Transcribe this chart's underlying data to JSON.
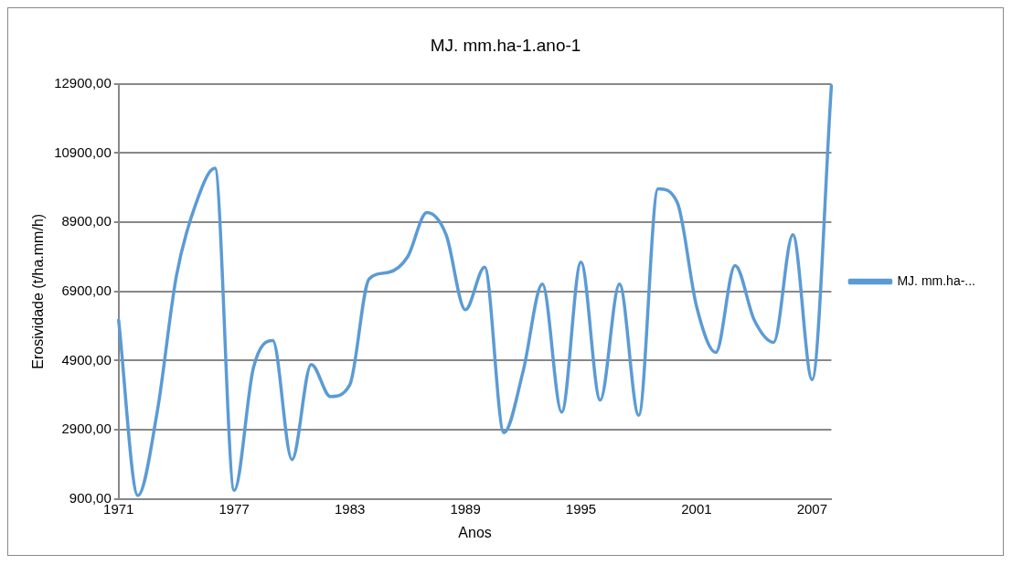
{
  "chart_data": {
    "type": "line",
    "title": "MJ. mm.ha-1.ano-1",
    "xlabel": "Anos",
    "ylabel": "Erosividade (t/ha.mm/h)",
    "categories": [
      "1971",
      null,
      null,
      null,
      null,
      null,
      "1977",
      null,
      null,
      null,
      null,
      null,
      "1983",
      null,
      null,
      null,
      null,
      null,
      "1989",
      null,
      null,
      null,
      null,
      null,
      "1995",
      null,
      null,
      null,
      null,
      null,
      "2001",
      null,
      null,
      null,
      null,
      null,
      "2007",
      null
    ],
    "series": [
      {
        "name": "MJ. mm.ha-...",
        "color": "#5b9bd5",
        "values": [
          6070,
          1000,
          3410,
          7350,
          9420,
          10460,
          1150,
          4700,
          5480,
          2040,
          4790,
          3860,
          4200,
          7260,
          7450,
          7900,
          9180,
          8540,
          6370,
          7600,
          2820,
          4600,
          7110,
          3410,
          7750,
          3760,
          7110,
          3320,
          9870,
          9470,
          6470,
          5140,
          7650,
          6070,
          5430,
          8540,
          4350,
          12850
        ]
      }
    ],
    "ylim": [
      900,
      12900
    ],
    "yticks": [
      {
        "value": 900,
        "label": "900,00"
      },
      {
        "value": 2900,
        "label": "2900,00"
      },
      {
        "value": 4900,
        "label": "4900,00"
      },
      {
        "value": 6900,
        "label": "6900,00"
      },
      {
        "value": 8900,
        "label": "8900,00"
      },
      {
        "value": 10900,
        "label": "10900,00"
      },
      {
        "value": 12900,
        "label": "12900,00"
      }
    ],
    "grid": "y",
    "legend": "right",
    "marker": "none",
    "line_style": "solid"
  }
}
